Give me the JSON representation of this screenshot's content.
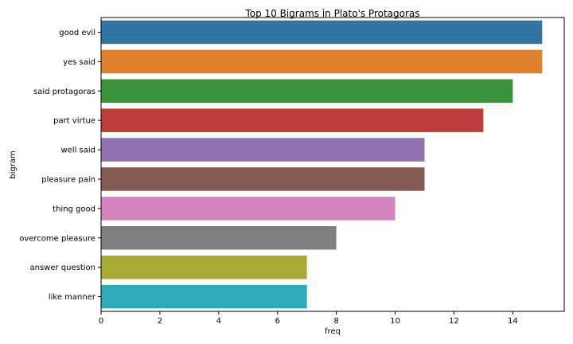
{
  "chart_data": {
    "type": "bar",
    "orientation": "horizontal",
    "title": "Top 10 Bigrams in Plato's Protagoras",
    "xlabel": "freq",
    "ylabel": "bigram",
    "categories": [
      "good evil",
      "yes said",
      "said protagoras",
      "part virtue",
      "well said",
      "pleasure pain",
      "thing good",
      "overcome pleasure",
      "answer question",
      "like manner"
    ],
    "values": [
      15,
      15,
      14,
      13,
      11,
      11,
      10,
      8,
      7,
      7
    ],
    "colors": [
      "#3274a1",
      "#e1812c",
      "#3a923a",
      "#c03d3e",
      "#9372b2",
      "#845b53",
      "#d684bd",
      "#7f7f7f",
      "#a9aa35",
      "#2eabb8"
    ],
    "xlim": [
      0,
      15.75
    ],
    "xticks": [
      0,
      2,
      4,
      6,
      8,
      10,
      12,
      14
    ],
    "grid": false,
    "legend": "none"
  }
}
